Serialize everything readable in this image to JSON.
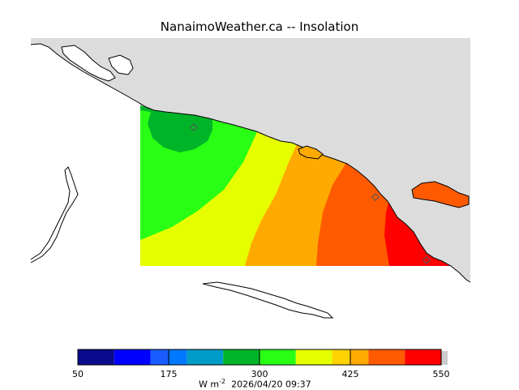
{
  "title": "NanaimoWeather.ca -- Insolation",
  "colors": {
    "land": "#dcdcdc",
    "water": "#ffffff",
    "coast": "#000000"
  },
  "colorbar": {
    "min": 50,
    "max": 550,
    "bins": [
      {
        "from": 50,
        "to": 100,
        "color": "#0a0a8c"
      },
      {
        "from": 100,
        "to": 150,
        "color": "#0000ff"
      },
      {
        "from": 150,
        "to": 175,
        "color": "#1a5cff"
      },
      {
        "from": 175,
        "to": 200,
        "color": "#0078ff"
      },
      {
        "from": 200,
        "to": 250,
        "color": "#009cc8"
      },
      {
        "from": 250,
        "to": 300,
        "color": "#00b428"
      },
      {
        "from": 300,
        "to": 350,
        "color": "#28ff14"
      },
      {
        "from": 350,
        "to": 400,
        "color": "#e6ff00"
      },
      {
        "from": 400,
        "to": 425,
        "color": "#ffd200"
      },
      {
        "from": 425,
        "to": 450,
        "color": "#ffaa00"
      },
      {
        "from": 450,
        "to": 500,
        "color": "#ff5a00"
      },
      {
        "from": 500,
        "to": 550,
        "color": "#ff0000"
      }
    ],
    "tick_labels": [
      "50",
      "175",
      "300",
      "425",
      "550"
    ],
    "tick_values": [
      50,
      175,
      300,
      425,
      550
    ]
  },
  "units_text": "W m",
  "units_exponent": "-2",
  "timestamp": "2026/04/20 09:37",
  "contour_colors": {
    "c250": "#00b428",
    "c300": "#28ff14",
    "c350": "#e6ff00",
    "c400": "#ffaa00",
    "c450": "#ff5a00",
    "c500": "#ff0000"
  }
}
